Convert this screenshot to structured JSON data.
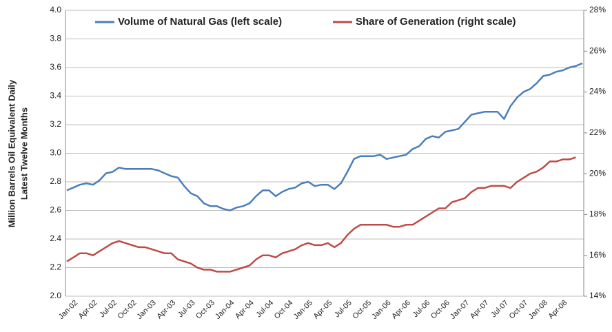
{
  "chart_data": {
    "type": "line",
    "y_label": [
      "Million Barrels Oil Equivalent Daily",
      "Latest Twelve Months"
    ],
    "categories": [
      "Jan-02",
      null,
      null,
      "Apr-02",
      null,
      null,
      "Jul-02",
      null,
      null,
      "Oct-02",
      null,
      null,
      "Jan-03",
      null,
      null,
      "Apr-03",
      null,
      null,
      "Jul-03",
      null,
      null,
      "Oct-03",
      null,
      null,
      "Jan-04",
      null,
      null,
      "Apr-04",
      null,
      null,
      "Jul-04",
      null,
      null,
      "Oct-04",
      null,
      null,
      "Jan-05",
      null,
      null,
      "Apr-05",
      null,
      null,
      "Jul-05",
      null,
      null,
      "Oct-05",
      null,
      null,
      "Jan-06",
      null,
      null,
      "Apr-06",
      null,
      null,
      "Jul-06",
      null,
      null,
      "Oct-06",
      null,
      null,
      "Jan-07",
      null,
      null,
      "Apr-07",
      null,
      null,
      "Jul-07",
      null,
      null,
      "Oct-07",
      null,
      null,
      "Jan-08",
      null,
      null,
      "Apr-08",
      null,
      null,
      null,
      null
    ],
    "series": [
      {
        "name": "Volume of Natural Gas (left scale)",
        "color": "#4a7ebb",
        "values": [
          2.74,
          2.76,
          2.78,
          2.79,
          2.78,
          2.81,
          2.86,
          2.87,
          2.9,
          2.89,
          2.89,
          2.89,
          2.89,
          2.89,
          2.88,
          2.86,
          2.84,
          2.83,
          2.77,
          2.72,
          2.7,
          2.65,
          2.63,
          2.63,
          2.61,
          2.6,
          2.62,
          2.63,
          2.65,
          2.7,
          2.74,
          2.74,
          2.7,
          2.73,
          2.75,
          2.76,
          2.79,
          2.8,
          2.77,
          2.78,
          2.78,
          2.75,
          2.79,
          2.87,
          2.96,
          2.98,
          2.98,
          2.98,
          2.99,
          2.96,
          2.97,
          2.98,
          2.99,
          3.03,
          3.05,
          3.1,
          3.12,
          3.11,
          3.15,
          3.16,
          3.17,
          3.22,
          3.27,
          3.28,
          3.29,
          3.29,
          3.29,
          3.24,
          3.33,
          3.39,
          3.43,
          3.45,
          3.49,
          3.54,
          3.55,
          3.57,
          3.58,
          3.6,
          3.61,
          3.63
        ]
      },
      {
        "name": "Share of Generation (right scale)",
        "color": "#be4b48",
        "axis": "y2",
        "values": [
          15.7,
          15.9,
          16.1,
          16.1,
          16.0,
          16.2,
          16.4,
          16.6,
          16.7,
          16.6,
          16.5,
          16.4,
          16.4,
          16.3,
          16.2,
          16.1,
          16.1,
          15.8,
          15.7,
          15.6,
          15.4,
          15.3,
          15.3,
          15.2,
          15.2,
          15.2,
          15.3,
          15.4,
          15.5,
          15.8,
          16.0,
          16.0,
          15.9,
          16.1,
          16.2,
          16.3,
          16.5,
          16.6,
          16.5,
          16.5,
          16.6,
          16.4,
          16.6,
          17.0,
          17.3,
          17.5,
          17.5,
          17.5,
          17.5,
          17.5,
          17.4,
          17.4,
          17.5,
          17.5,
          17.7,
          17.9,
          18.1,
          18.3,
          18.3,
          18.6,
          18.7,
          18.8,
          19.1,
          19.3,
          19.3,
          19.4,
          19.4,
          19.4,
          19.3,
          19.6,
          19.8,
          20.0,
          20.1,
          20.3,
          20.6,
          20.6,
          20.7,
          20.7,
          20.8,
          null
        ]
      }
    ],
    "ylim": [
      2,
      4
    ],
    "yticks": [
      {
        "value": 2,
        "label": "2.0"
      },
      {
        "value": 2.2,
        "label": "2.2"
      },
      {
        "value": 2.4,
        "label": "2.4"
      },
      {
        "value": 2.6,
        "label": "2.6"
      },
      {
        "value": 2.8,
        "label": "2.8"
      },
      {
        "value": 3,
        "label": "3.0"
      },
      {
        "value": 3.2,
        "label": "3.2"
      },
      {
        "value": 3.4,
        "label": "3.4"
      },
      {
        "value": 3.6,
        "label": "3.6"
      },
      {
        "value": 3.8,
        "label": "3.8"
      },
      {
        "value": 4,
        "label": "4.0"
      }
    ],
    "y2lim": [
      14,
      28
    ],
    "y2ticks": [
      {
        "value": 14,
        "label": "14%"
      },
      {
        "value": 16,
        "label": "16%"
      },
      {
        "value": 18,
        "label": "18%"
      },
      {
        "value": 20,
        "label": "20%"
      },
      {
        "value": 22,
        "label": "22%"
      },
      {
        "value": 24,
        "label": "24%"
      },
      {
        "value": 26,
        "label": "26%"
      },
      {
        "value": 28,
        "label": "28%"
      }
    ],
    "grid": true,
    "legend": "top"
  }
}
